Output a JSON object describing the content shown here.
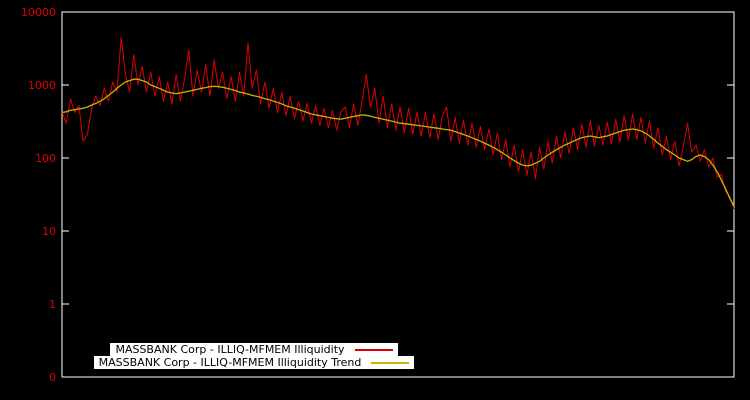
{
  "chart": {
    "background": "#000000",
    "axis_color": "#ffffff",
    "tick_label_color": "#dd0000",
    "y_ticks": [
      {
        "label": "10000",
        "value": 10000
      },
      {
        "label": "1000",
        "value": 1000
      },
      {
        "label": "100",
        "value": 100
      },
      {
        "label": "10",
        "value": 10
      },
      {
        "label": "1",
        "value": 1
      },
      {
        "label": "0",
        "value": 0.1
      }
    ],
    "legend": {
      "items": [
        {
          "label": "MASSBANK Corp - ILLIQ-MFMEM Illiquidity",
          "color": "#dd0000"
        },
        {
          "label": "MASSBANK Corp - ILLIQ-MFMEM Illiquidity Trend",
          "color": "#c8b400"
        }
      ]
    }
  },
  "chart_data": {
    "type": "line",
    "title": "",
    "xlabel": "",
    "ylabel": "",
    "yscale": "log",
    "ylim": [
      0.1,
      10000
    ],
    "grid": false,
    "legend_position": "bottom-center-inside",
    "series": [
      {
        "name": "MASSBANK Corp - ILLIQ-MFMEM Illiquidity",
        "color": "#dd0000",
        "width": 1,
        "values": [
          430,
          300,
          650,
          420,
          520,
          170,
          210,
          480,
          700,
          520,
          900,
          600,
          1100,
          800,
          4500,
          1400,
          800,
          2600,
          1000,
          1800,
          800,
          1500,
          700,
          1300,
          600,
          1100,
          550,
          1400,
          600,
          1200,
          3000,
          700,
          1600,
          800,
          1900,
          700,
          2200,
          900,
          1500,
          650,
          1300,
          600,
          1500,
          700,
          3800,
          900,
          1600,
          550,
          1100,
          480,
          900,
          420,
          800,
          380,
          700,
          350,
          600,
          320,
          560,
          300,
          520,
          280,
          480,
          260,
          450,
          240,
          430,
          500,
          260,
          550,
          280,
          600,
          1400,
          500,
          900,
          300,
          700,
          260,
          550,
          240,
          500,
          220,
          480,
          210,
          430,
          200,
          420,
          190,
          400,
          180,
          380,
          500,
          170,
          360,
          160,
          330,
          150,
          300,
          140,
          270,
          130,
          250,
          110,
          220,
          95,
          180,
          75,
          150,
          65,
          130,
          58,
          120,
          52,
          140,
          70,
          170,
          85,
          200,
          100,
          230,
          115,
          260,
          130,
          290,
          140,
          320,
          145,
          280,
          150,
          310,
          155,
          340,
          165,
          380,
          175,
          400,
          180,
          360,
          160,
          320,
          135,
          260,
          110,
          200,
          95,
          170,
          78,
          145,
          300,
          120,
          150,
          90,
          130,
          75,
          100,
          55,
          60,
          35,
          30,
          20
        ]
      },
      {
        "name": "MASSBANK Corp - ILLIQ-MFMEM Illiquidity Trend",
        "color": "#c8b400",
        "width": 1.3,
        "values": [
          420,
          430,
          450,
          460,
          470,
          480,
          500,
          530,
          560,
          600,
          650,
          720,
          800,
          900,
          1000,
          1100,
          1150,
          1200,
          1200,
          1150,
          1100,
          1000,
          950,
          900,
          850,
          800,
          780,
          760,
          780,
          800,
          820,
          850,
          870,
          900,
          920,
          950,
          960,
          950,
          930,
          900,
          870,
          840,
          800,
          780,
          750,
          720,
          700,
          680,
          650,
          630,
          600,
          580,
          550,
          520,
          500,
          480,
          460,
          440,
          420,
          400,
          390,
          380,
          370,
          360,
          350,
          345,
          340,
          350,
          360,
          370,
          380,
          390,
          385,
          375,
          360,
          350,
          340,
          330,
          320,
          310,
          300,
          295,
          290,
          285,
          280,
          275,
          270,
          265,
          260,
          255,
          250,
          245,
          240,
          230,
          220,
          210,
          200,
          190,
          180,
          170,
          160,
          150,
          140,
          130,
          120,
          110,
          100,
          92,
          85,
          80,
          78,
          80,
          85,
          90,
          100,
          110,
          120,
          130,
          140,
          150,
          160,
          170,
          180,
          190,
          195,
          200,
          195,
          190,
          195,
          200,
          210,
          220,
          230,
          240,
          245,
          250,
          245,
          235,
          220,
          200,
          180,
          160,
          145,
          130,
          120,
          110,
          100,
          95,
          90,
          95,
          105,
          110,
          105,
          95,
          80,
          65,
          50,
          38,
          28,
          22
        ]
      }
    ]
  }
}
